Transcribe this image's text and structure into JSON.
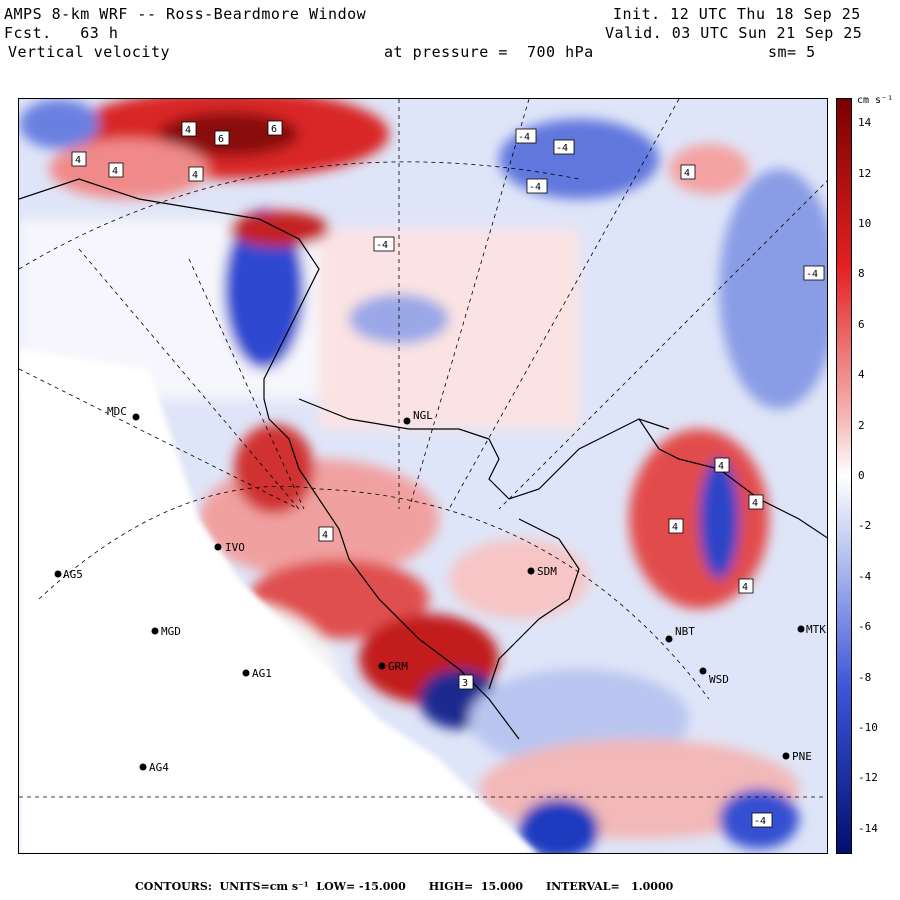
{
  "header": {
    "title": "AMPS 8-km WRF -- Ross-Beardmore Window",
    "forecast": "Fcst.   63 h",
    "field": "Vertical velocity",
    "pressure": "at pressure =  700 hPa",
    "init": "Init. 12 UTC Thu 18 Sep 25",
    "valid": "Valid. 03 UTC Sun 21 Sep 25",
    "smoothing": "sm= 5"
  },
  "colorbar": {
    "units_label": "cm s⁻¹",
    "ticks": [
      "14",
      "12",
      "10",
      "8",
      "6",
      "4",
      "2",
      "0",
      "-2",
      "-4",
      "-6",
      "-8",
      "-10",
      "-12",
      "-14"
    ],
    "min": -15,
    "max": 15,
    "colors": {
      "strong_positive": "#7a0000",
      "positive": "#e32020",
      "weak_positive": "#f5b5b5",
      "neutral": "#ffffff",
      "weak_negative": "#c8d2f2",
      "negative": "#3d55d8",
      "strong_negative": "#000f70"
    }
  },
  "stations": [
    {
      "id": "MDC",
      "label": "MDC"
    },
    {
      "id": "NGL",
      "label": "NGL"
    },
    {
      "id": "IVO",
      "label": "IVO"
    },
    {
      "id": "AG5",
      "label": "AG5"
    },
    {
      "id": "MGD",
      "label": "MGD"
    },
    {
      "id": "AG1",
      "label": "AG1"
    },
    {
      "id": "GRM",
      "label": "GRM"
    },
    {
      "id": "SDM",
      "label": "SDM"
    },
    {
      "id": "NBT",
      "label": "NBT"
    },
    {
      "id": "MTK",
      "label": "MTK"
    },
    {
      "id": "WSD",
      "label": "WSD"
    },
    {
      "id": "PNE",
      "label": "PNE"
    },
    {
      "id": "AG4",
      "label": "AG4"
    }
  ],
  "contour_labels": [
    "4",
    "6",
    "6",
    "4",
    "4",
    "4",
    "-4",
    "-4",
    "-4",
    "4",
    "-4",
    "-4",
    "4",
    "4",
    "4",
    "4",
    "4",
    "3",
    "-4"
  ],
  "footer": {
    "text": "CONTOURS:  UNITS=cm s⁻¹  LOW= -15.000      HIGH=  15.000      INTERVAL=   1.0000"
  }
}
